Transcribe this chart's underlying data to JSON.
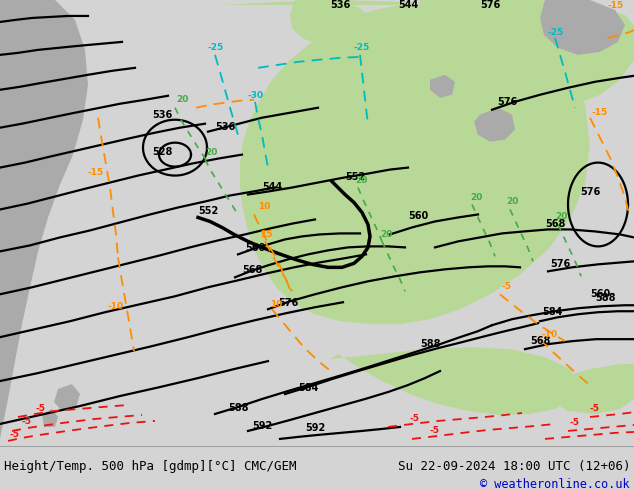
{
  "title_left": "Height/Temp. 500 hPa [gdmp][°C] CMC/GEM",
  "title_right": "Su 22-09-2024 18:00 UTC (12+06)",
  "copyright": "© weatheronline.co.uk",
  "bg_color": "#d4d4d4",
  "map_bg_color": "#d4d4d4",
  "green_color": "#b8d898",
  "gray_color": "#aaaaaa",
  "fig_width": 6.34,
  "fig_height": 4.9,
  "dpi": 100,
  "title_fontsize": 9.0,
  "copyright_color": "#0000cc",
  "copyright_fontsize": 8.5,
  "black_lw": 1.6,
  "temp_lw": 1.3
}
